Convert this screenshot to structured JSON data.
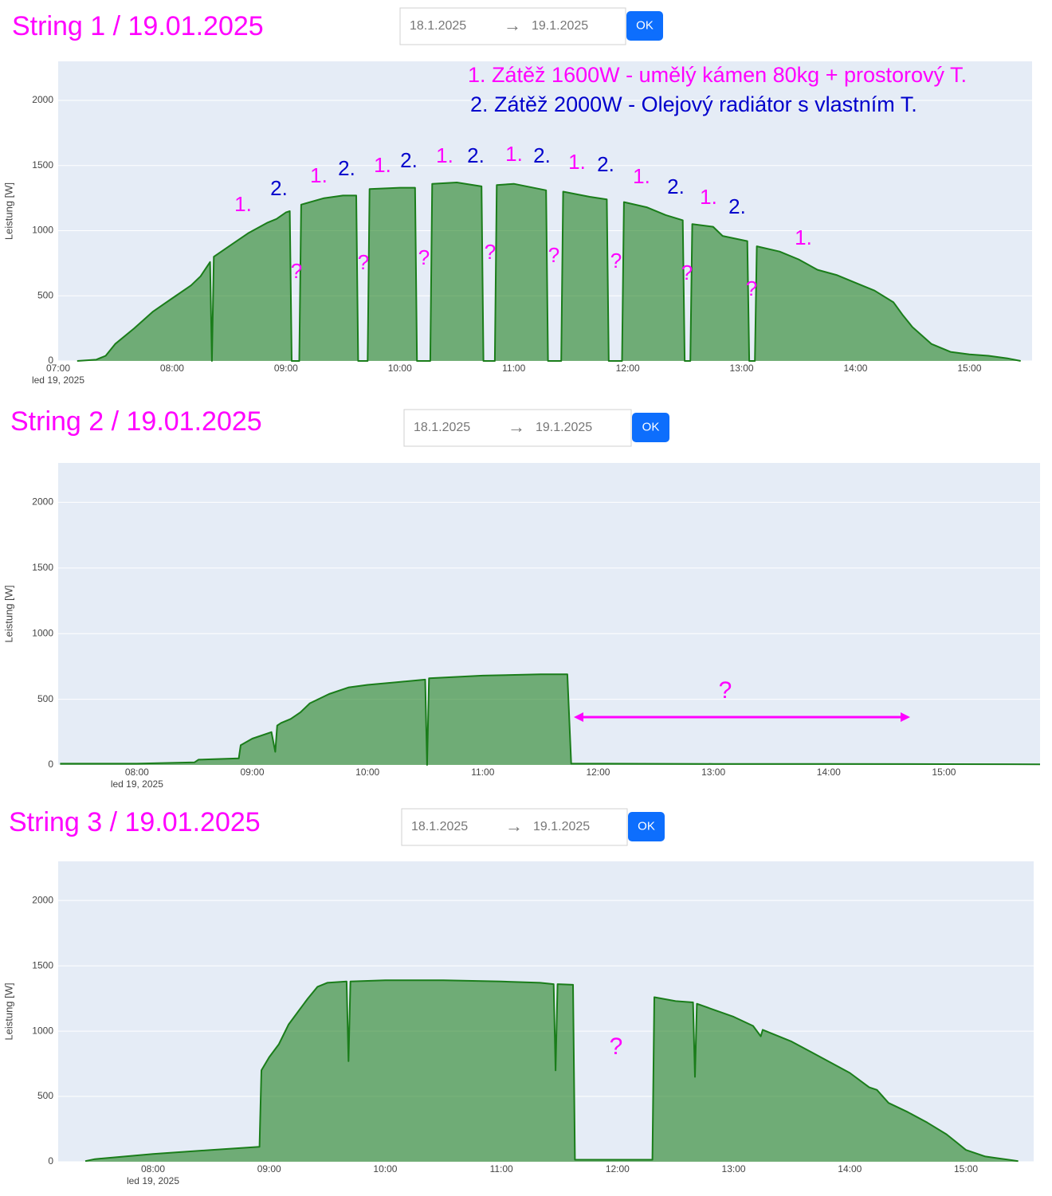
{
  "chart_data": [
    {
      "type": "area",
      "title": "String 1 / 19.01.2025",
      "date_from": "18.1.2025",
      "date_separator": "→",
      "date_to": "19.1.2025",
      "button": "OK",
      "ylabel": "Leistung [W]",
      "date_label": "led 19, 2025",
      "color": "#1a7d1a",
      "grid": true,
      "xlim": [
        "07:00",
        "15:33"
      ],
      "xticks": [
        "07:00",
        "08:00",
        "09:00",
        "10:00",
        "11:00",
        "12:00",
        "13:00",
        "14:00",
        "15:00"
      ],
      "ylim": [
        0,
        2300
      ],
      "yticks": [
        0,
        500,
        1000,
        1500,
        2000
      ],
      "x": [
        "07:10",
        "07:20",
        "07:25",
        "07:30",
        "07:40",
        "07:50",
        "08:00",
        "08:10",
        "08:15",
        "08:20",
        "08:21",
        "08:22",
        "08:30",
        "08:40",
        "08:50",
        "08:55",
        "09:00",
        "09:02",
        "09:03",
        "09:07",
        "09:08",
        "09:20",
        "09:30",
        "09:37",
        "09:38",
        "09:43",
        "09:44",
        "10:00",
        "10:08",
        "10:09",
        "10:16",
        "10:17",
        "10:30",
        "10:43",
        "10:44",
        "10:50",
        "10:51",
        "11:00",
        "11:17",
        "11:18",
        "11:25",
        "11:26",
        "11:40",
        "11:49",
        "11:50",
        "11:57",
        "11:58",
        "12:10",
        "12:20",
        "12:29",
        "12:30",
        "12:33",
        "12:34",
        "12:45",
        "12:50",
        "13:03",
        "13:04",
        "13:07",
        "13:08",
        "13:20",
        "13:30",
        "13:40",
        "13:50",
        "14:00",
        "14:10",
        "14:20",
        "14:25",
        "14:30",
        "14:40",
        "14:50",
        "15:00",
        "15:10",
        "15:20",
        "15:27"
      ],
      "values": [
        0,
        10,
        40,
        130,
        250,
        380,
        480,
        580,
        650,
        760,
        0,
        800,
        880,
        980,
        1060,
        1090,
        1140,
        1150,
        0,
        0,
        1200,
        1250,
        1270,
        1270,
        0,
        0,
        1320,
        1330,
        1330,
        0,
        0,
        1360,
        1370,
        1340,
        0,
        0,
        1350,
        1360,
        1310,
        0,
        0,
        1300,
        1260,
        1240,
        0,
        0,
        1220,
        1180,
        1120,
        1080,
        0,
        0,
        1050,
        1030,
        960,
        920,
        0,
        0,
        880,
        840,
        780,
        700,
        660,
        600,
        540,
        450,
        350,
        260,
        130,
        70,
        50,
        40,
        20,
        0
      ],
      "annotations": [
        {
          "text": "1. Zátěž 1600W  - umělý kámen 80kg + prostorový T.",
          "color": "#ff00ff"
        },
        {
          "text": "2. Zátěž 2000W  - Olejový radiátor s vlastním T.",
          "color": "#0000cc"
        },
        {
          "text": "1.",
          "color": "#ff00ff"
        },
        {
          "text": "2.",
          "color": "#0000cc"
        },
        {
          "text": "1.",
          "color": "#ff00ff"
        },
        {
          "text": "2.",
          "color": "#0000cc"
        },
        {
          "text": "1.",
          "color": "#ff00ff"
        },
        {
          "text": "2.",
          "color": "#0000cc"
        },
        {
          "text": "1.",
          "color": "#ff00ff"
        },
        {
          "text": "2.",
          "color": "#0000cc"
        },
        {
          "text": "1.",
          "color": "#ff00ff"
        },
        {
          "text": "2.",
          "color": "#0000cc"
        },
        {
          "text": "1.",
          "color": "#ff00ff"
        },
        {
          "text": "2.",
          "color": "#0000cc"
        },
        {
          "text": "1.",
          "color": "#ff00ff"
        },
        {
          "text": "2.",
          "color": "#0000cc"
        },
        {
          "text": "1.",
          "color": "#ff00ff"
        },
        {
          "text": "2.",
          "color": "#0000cc"
        },
        {
          "text": "1.",
          "color": "#ff00ff"
        },
        {
          "text": "?",
          "color": "#ff00ff"
        },
        {
          "text": "?",
          "color": "#ff00ff"
        },
        {
          "text": "?",
          "color": "#ff00ff"
        },
        {
          "text": "?",
          "color": "#ff00ff"
        },
        {
          "text": "?",
          "color": "#ff00ff"
        },
        {
          "text": "?",
          "color": "#ff00ff"
        },
        {
          "text": "?",
          "color": "#ff00ff"
        },
        {
          "text": "?",
          "color": "#ff00ff"
        }
      ]
    },
    {
      "type": "area",
      "title": "String 2 / 19.01.2025",
      "date_from": "18.1.2025",
      "date_separator": "→",
      "date_to": "19.1.2025",
      "button": "OK",
      "ylabel": "Leistung [W]",
      "date_label": "led 19, 2025",
      "color": "#1a7d1a",
      "grid": true,
      "xlim": [
        "07:19",
        "15:50"
      ],
      "xticks": [
        "08:00",
        "09:00",
        "10:00",
        "11:00",
        "12:00",
        "13:00",
        "14:00",
        "15:00"
      ],
      "ylim": [
        0,
        2300
      ],
      "yticks": [
        0,
        500,
        1000,
        1500,
        2000
      ],
      "x": [
        "07:20",
        "08:00",
        "08:30",
        "08:32",
        "08:53",
        "08:54",
        "09:00",
        "09:10",
        "09:12",
        "09:13",
        "09:15",
        "09:20",
        "09:25",
        "09:30",
        "09:40",
        "09:50",
        "10:00",
        "10:15",
        "10:30",
        "10:31",
        "10:32",
        "11:00",
        "11:30",
        "11:44",
        "11:46",
        "12:00",
        "13:00",
        "14:00",
        "15:00",
        "15:50"
      ],
      "values": [
        10,
        10,
        20,
        40,
        50,
        150,
        200,
        250,
        100,
        300,
        320,
        350,
        400,
        470,
        540,
        590,
        610,
        630,
        650,
        0,
        660,
        680,
        690,
        690,
        10,
        10,
        8,
        8,
        6,
        5
      ],
      "annotations": [
        {
          "text": "?",
          "color": "#ff00ff"
        }
      ]
    },
    {
      "type": "area",
      "title": "String 3 / 19.01.2025",
      "date_from": "18.1.2025",
      "date_separator": "→",
      "date_to": "19.1.2025",
      "button": "OK",
      "ylabel": "Leistung [W]",
      "date_label": "led 19, 2025",
      "color": "#1a7d1a",
      "grid": true,
      "xlim": [
        "07:11",
        "15:35"
      ],
      "xticks": [
        "08:00",
        "09:00",
        "10:00",
        "11:00",
        "12:00",
        "13:00",
        "14:00",
        "15:00"
      ],
      "ylim": [
        0,
        2300
      ],
      "yticks": [
        0,
        500,
        1000,
        1500,
        2000
      ],
      "x": [
        "07:25",
        "07:30",
        "08:00",
        "08:30",
        "08:55",
        "08:56",
        "09:00",
        "09:05",
        "09:10",
        "09:15",
        "09:20",
        "09:25",
        "09:30",
        "09:40",
        "09:41",
        "09:42",
        "10:00",
        "10:30",
        "10:45",
        "11:00",
        "11:20",
        "11:27",
        "11:28",
        "11:29",
        "11:37",
        "11:38",
        "12:00",
        "12:18",
        "12:19",
        "12:30",
        "12:39",
        "12:40",
        "12:41",
        "13:00",
        "13:10",
        "13:14",
        "13:15",
        "13:30",
        "13:40",
        "13:50",
        "14:00",
        "14:10",
        "14:14",
        "14:20",
        "14:30",
        "14:40",
        "14:50",
        "14:55",
        "15:00",
        "15:10",
        "15:15",
        "15:27"
      ],
      "values": [
        5,
        20,
        60,
        90,
        115,
        700,
        800,
        900,
        1050,
        1150,
        1250,
        1340,
        1370,
        1380,
        770,
        1380,
        1390,
        1390,
        1385,
        1380,
        1370,
        1360,
        700,
        1360,
        1355,
        15,
        15,
        15,
        1260,
        1230,
        1220,
        650,
        1210,
        1110,
        1040,
        960,
        1010,
        920,
        840,
        760,
        680,
        570,
        550,
        450,
        380,
        300,
        210,
        150,
        90,
        40,
        30,
        5
      ],
      "annotations": [
        {
          "text": "?",
          "color": "#ff00ff"
        }
      ]
    }
  ]
}
